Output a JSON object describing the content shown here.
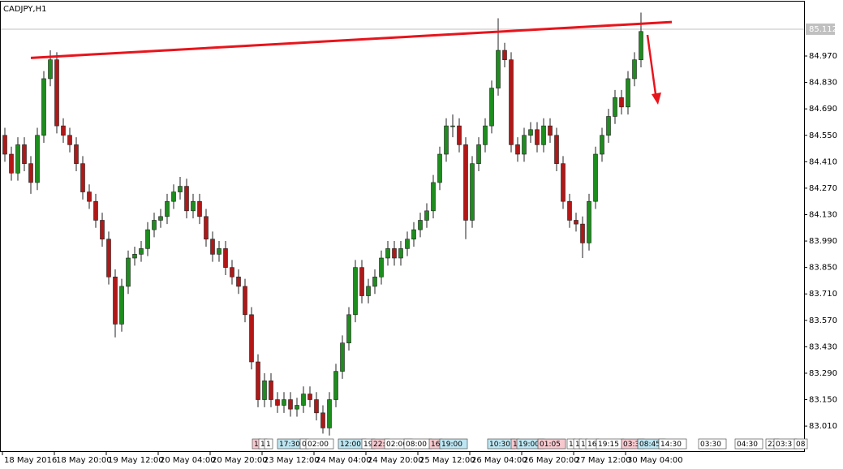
{
  "chart_data": {
    "type": "candlestick",
    "title": "CADJPY,H1",
    "up_color": "#1e8c1e",
    "down_color": "#b01818",
    "wick_color": "#202020",
    "ylim": [
      82.946,
      85.258
    ],
    "yticks": [
      {
        "value": 83.01,
        "label": "83.010"
      },
      {
        "value": 83.15,
        "label": "83.150"
      },
      {
        "value": 83.29,
        "label": "83.290"
      },
      {
        "value": 83.43,
        "label": "83.430"
      },
      {
        "value": 83.57,
        "label": "83.570"
      },
      {
        "value": 83.71,
        "label": "83.710"
      },
      {
        "value": 83.85,
        "label": "83.850"
      },
      {
        "value": 83.99,
        "label": "83.990"
      },
      {
        "value": 84.13,
        "label": "84.130"
      },
      {
        "value": 84.27,
        "label": "84.270"
      },
      {
        "value": 84.41,
        "label": "84.410"
      },
      {
        "value": 84.55,
        "label": "84.550"
      },
      {
        "value": 84.69,
        "label": "84.690"
      },
      {
        "value": 84.83,
        "label": "84.830"
      },
      {
        "value": 84.97,
        "label": "84.970"
      }
    ],
    "current_price": {
      "value": 85.112,
      "label": "85.112"
    },
    "xticks": [
      {
        "value": 0,
        "label": "18 May 2016"
      },
      {
        "value": 8,
        "label": "18 May 20:00"
      },
      {
        "value": 16,
        "label": "19 May 12:00"
      },
      {
        "value": 24,
        "label": "20 May 04:00"
      },
      {
        "value": 32,
        "label": "20 May 20:00"
      },
      {
        "value": 40,
        "label": "23 May 12:00"
      },
      {
        "value": 48,
        "label": "24 May 04:00"
      },
      {
        "value": 56,
        "label": "24 May 20:00"
      },
      {
        "value": 64,
        "label": "25 May 12:00"
      },
      {
        "value": 72,
        "label": "26 May 04:00"
      },
      {
        "value": 80,
        "label": "26 May 20:00"
      },
      {
        "value": 88,
        "label": "27 May 12:00"
      },
      {
        "value": 96,
        "label": "30 May 04:00"
      }
    ],
    "trendline": {
      "x": [
        4,
        102.75
      ],
      "y": [
        84.96,
        85.15
      ],
      "color": "#e8141c"
    },
    "events": [
      {
        "label": "1",
        "color": "#f6c9cf"
      },
      {
        "label": "1",
        "color": "#ffffff"
      },
      {
        "label": "1",
        "color": "#ffffff"
      },
      {
        "label": "17:30",
        "color": "#bde6f2"
      },
      {
        "label": "0",
        "color": "#ffffff"
      },
      {
        "label": "02:00",
        "color": "#ffffff"
      },
      {
        "label": "12:00",
        "color": "#bde6f2"
      },
      {
        "label": "19",
        "color": "#ffffff"
      },
      {
        "label": "22:",
        "color": "#f6c9cf"
      },
      {
        "label": "02:00",
        "color": "#ffffff"
      },
      {
        "label": "08:00",
        "color": "#ffffff"
      },
      {
        "label": "16",
        "color": "#f6c9cf"
      },
      {
        "label": "19:00",
        "color": "#bde6f2"
      },
      {
        "label": "10:30",
        "color": "#bde6f2"
      },
      {
        "label": "1",
        "color": "#f6c9cf"
      },
      {
        "label": "19:00",
        "color": "#bde6f2"
      },
      {
        "label": "01:05",
        "color": "#f6c9cf"
      },
      {
        "label": "1",
        "color": "#ffffff"
      },
      {
        "label": "1",
        "color": "#ffffff"
      },
      {
        "label": "1",
        "color": "#ffffff"
      },
      {
        "label": "16",
        "color": "#ffffff"
      },
      {
        "label": "19:15",
        "color": "#ffffff"
      },
      {
        "label": "03:3",
        "color": "#f6c9cf"
      },
      {
        "label": "08:45",
        "color": "#bde6f2"
      },
      {
        "label": "14:30",
        "color": "#ffffff"
      },
      {
        "label": "03:30",
        "color": "#ffffff"
      },
      {
        "label": "04:30",
        "color": "#ffffff"
      },
      {
        "label": "22",
        "color": "#ffffff"
      },
      {
        "label": "03:3",
        "color": "#ffffff"
      },
      {
        "label": "08",
        "color": "#ffffff"
      }
    ],
    "candles": [
      [
        84.55,
        84.59,
        84.41,
        84.45
      ],
      [
        84.45,
        84.49,
        84.31,
        84.35
      ],
      [
        84.35,
        84.54,
        84.31,
        84.5
      ],
      [
        84.5,
        84.54,
        84.36,
        84.4
      ],
      [
        84.4,
        84.44,
        84.24,
        84.3
      ],
      [
        84.3,
        84.59,
        84.26,
        84.55
      ],
      [
        84.55,
        84.89,
        84.51,
        84.85
      ],
      [
        84.85,
        85.0,
        84.81,
        84.95
      ],
      [
        84.95,
        84.99,
        84.56,
        84.6
      ],
      [
        84.6,
        84.64,
        84.51,
        84.55
      ],
      [
        84.55,
        84.59,
        84.46,
        84.5
      ],
      [
        84.5,
        84.54,
        84.36,
        84.4
      ],
      [
        84.4,
        84.44,
        84.21,
        84.25
      ],
      [
        84.25,
        84.29,
        84.16,
        84.2
      ],
      [
        84.2,
        84.24,
        84.06,
        84.1
      ],
      [
        84.1,
        84.14,
        83.96,
        84.0
      ],
      [
        84.0,
        84.04,
        83.76,
        83.8
      ],
      [
        83.8,
        83.84,
        83.48,
        83.55
      ],
      [
        83.55,
        83.79,
        83.51,
        83.75
      ],
      [
        83.75,
        83.94,
        83.71,
        83.9
      ],
      [
        83.9,
        83.96,
        83.86,
        83.92
      ],
      [
        83.92,
        83.99,
        83.88,
        83.95
      ],
      [
        83.95,
        84.09,
        83.91,
        84.05
      ],
      [
        84.05,
        84.14,
        84.01,
        84.1
      ],
      [
        84.1,
        84.16,
        84.06,
        84.12
      ],
      [
        84.12,
        84.24,
        84.08,
        84.2
      ],
      [
        84.2,
        84.29,
        84.16,
        84.25
      ],
      [
        84.25,
        84.33,
        84.21,
        84.28
      ],
      [
        84.28,
        84.32,
        84.11,
        84.15
      ],
      [
        84.15,
        84.24,
        84.11,
        84.2
      ],
      [
        84.2,
        84.24,
        84.08,
        84.12
      ],
      [
        84.12,
        84.16,
        83.96,
        84.0
      ],
      [
        84.0,
        84.04,
        83.88,
        83.92
      ],
      [
        83.92,
        83.99,
        83.88,
        83.95
      ],
      [
        83.95,
        83.99,
        83.81,
        83.85
      ],
      [
        83.85,
        83.89,
        83.76,
        83.8
      ],
      [
        83.8,
        83.84,
        83.71,
        83.75
      ],
      [
        83.75,
        83.79,
        83.56,
        83.6
      ],
      [
        83.6,
        83.64,
        83.31,
        83.35
      ],
      [
        83.35,
        83.39,
        83.11,
        83.15
      ],
      [
        83.15,
        83.29,
        83.11,
        83.25
      ],
      [
        83.25,
        83.29,
        83.11,
        83.15
      ],
      [
        83.15,
        83.19,
        83.08,
        83.12
      ],
      [
        83.12,
        83.19,
        83.08,
        83.15
      ],
      [
        83.15,
        83.19,
        83.06,
        83.1
      ],
      [
        83.1,
        83.16,
        83.06,
        83.12
      ],
      [
        83.12,
        83.22,
        83.08,
        83.18
      ],
      [
        83.18,
        83.22,
        83.11,
        83.15
      ],
      [
        83.15,
        83.19,
        83.04,
        83.08
      ],
      [
        83.08,
        83.12,
        82.97,
        83.0
      ],
      [
        83.0,
        83.19,
        82.96,
        83.15
      ],
      [
        83.15,
        83.34,
        83.11,
        83.3
      ],
      [
        83.3,
        83.49,
        83.26,
        83.45
      ],
      [
        83.45,
        83.64,
        83.41,
        83.6
      ],
      [
        83.6,
        83.89,
        83.56,
        83.85
      ],
      [
        83.85,
        83.89,
        83.66,
        83.7
      ],
      [
        83.7,
        83.79,
        83.66,
        83.75
      ],
      [
        83.75,
        83.84,
        83.71,
        83.8
      ],
      [
        83.8,
        83.94,
        83.76,
        83.9
      ],
      [
        83.9,
        83.99,
        83.86,
        83.95
      ],
      [
        83.95,
        83.99,
        83.86,
        83.9
      ],
      [
        83.9,
        83.99,
        83.86,
        83.95
      ],
      [
        83.95,
        84.04,
        83.91,
        84.0
      ],
      [
        84.0,
        84.09,
        83.96,
        84.05
      ],
      [
        84.05,
        84.14,
        84.01,
        84.1
      ],
      [
        84.1,
        84.19,
        84.06,
        84.15
      ],
      [
        84.15,
        84.34,
        84.11,
        84.3
      ],
      [
        84.3,
        84.49,
        84.26,
        84.45
      ],
      [
        84.45,
        84.64,
        84.41,
        84.6
      ],
      [
        84.6,
        84.66,
        84.54,
        84.6
      ],
      [
        84.6,
        84.64,
        84.46,
        84.5
      ],
      [
        84.5,
        84.54,
        84.0,
        84.1
      ],
      [
        84.1,
        84.44,
        84.06,
        84.4
      ],
      [
        84.4,
        84.54,
        84.36,
        84.5
      ],
      [
        84.5,
        84.64,
        84.46,
        84.6
      ],
      [
        84.6,
        84.84,
        84.56,
        84.8
      ],
      [
        84.8,
        85.17,
        84.76,
        85.0
      ],
      [
        85.0,
        85.04,
        84.91,
        84.95
      ],
      [
        84.95,
        84.99,
        84.46,
        84.5
      ],
      [
        84.5,
        84.54,
        84.41,
        84.45
      ],
      [
        84.45,
        84.59,
        84.41,
        84.55
      ],
      [
        84.55,
        84.62,
        84.51,
        84.58
      ],
      [
        84.58,
        84.62,
        84.46,
        84.5
      ],
      [
        84.5,
        84.64,
        84.46,
        84.6
      ],
      [
        84.6,
        84.64,
        84.51,
        84.55
      ],
      [
        84.55,
        84.59,
        84.36,
        84.4
      ],
      [
        84.4,
        84.44,
        84.16,
        84.2
      ],
      [
        84.2,
        84.24,
        84.06,
        84.1
      ],
      [
        84.1,
        84.14,
        84.04,
        84.08
      ],
      [
        84.08,
        84.12,
        83.9,
        83.98
      ],
      [
        83.98,
        84.24,
        83.94,
        84.2
      ],
      [
        84.2,
        84.49,
        84.16,
        84.45
      ],
      [
        84.45,
        84.59,
        84.41,
        84.55
      ],
      [
        84.55,
        84.69,
        84.51,
        84.65
      ],
      [
        84.65,
        84.79,
        84.61,
        84.75
      ],
      [
        84.75,
        84.79,
        84.66,
        84.7
      ],
      [
        84.7,
        84.89,
        84.66,
        84.85
      ],
      [
        84.85,
        84.99,
        84.81,
        84.95
      ],
      [
        84.95,
        85.2,
        84.91,
        85.1
      ]
    ]
  }
}
